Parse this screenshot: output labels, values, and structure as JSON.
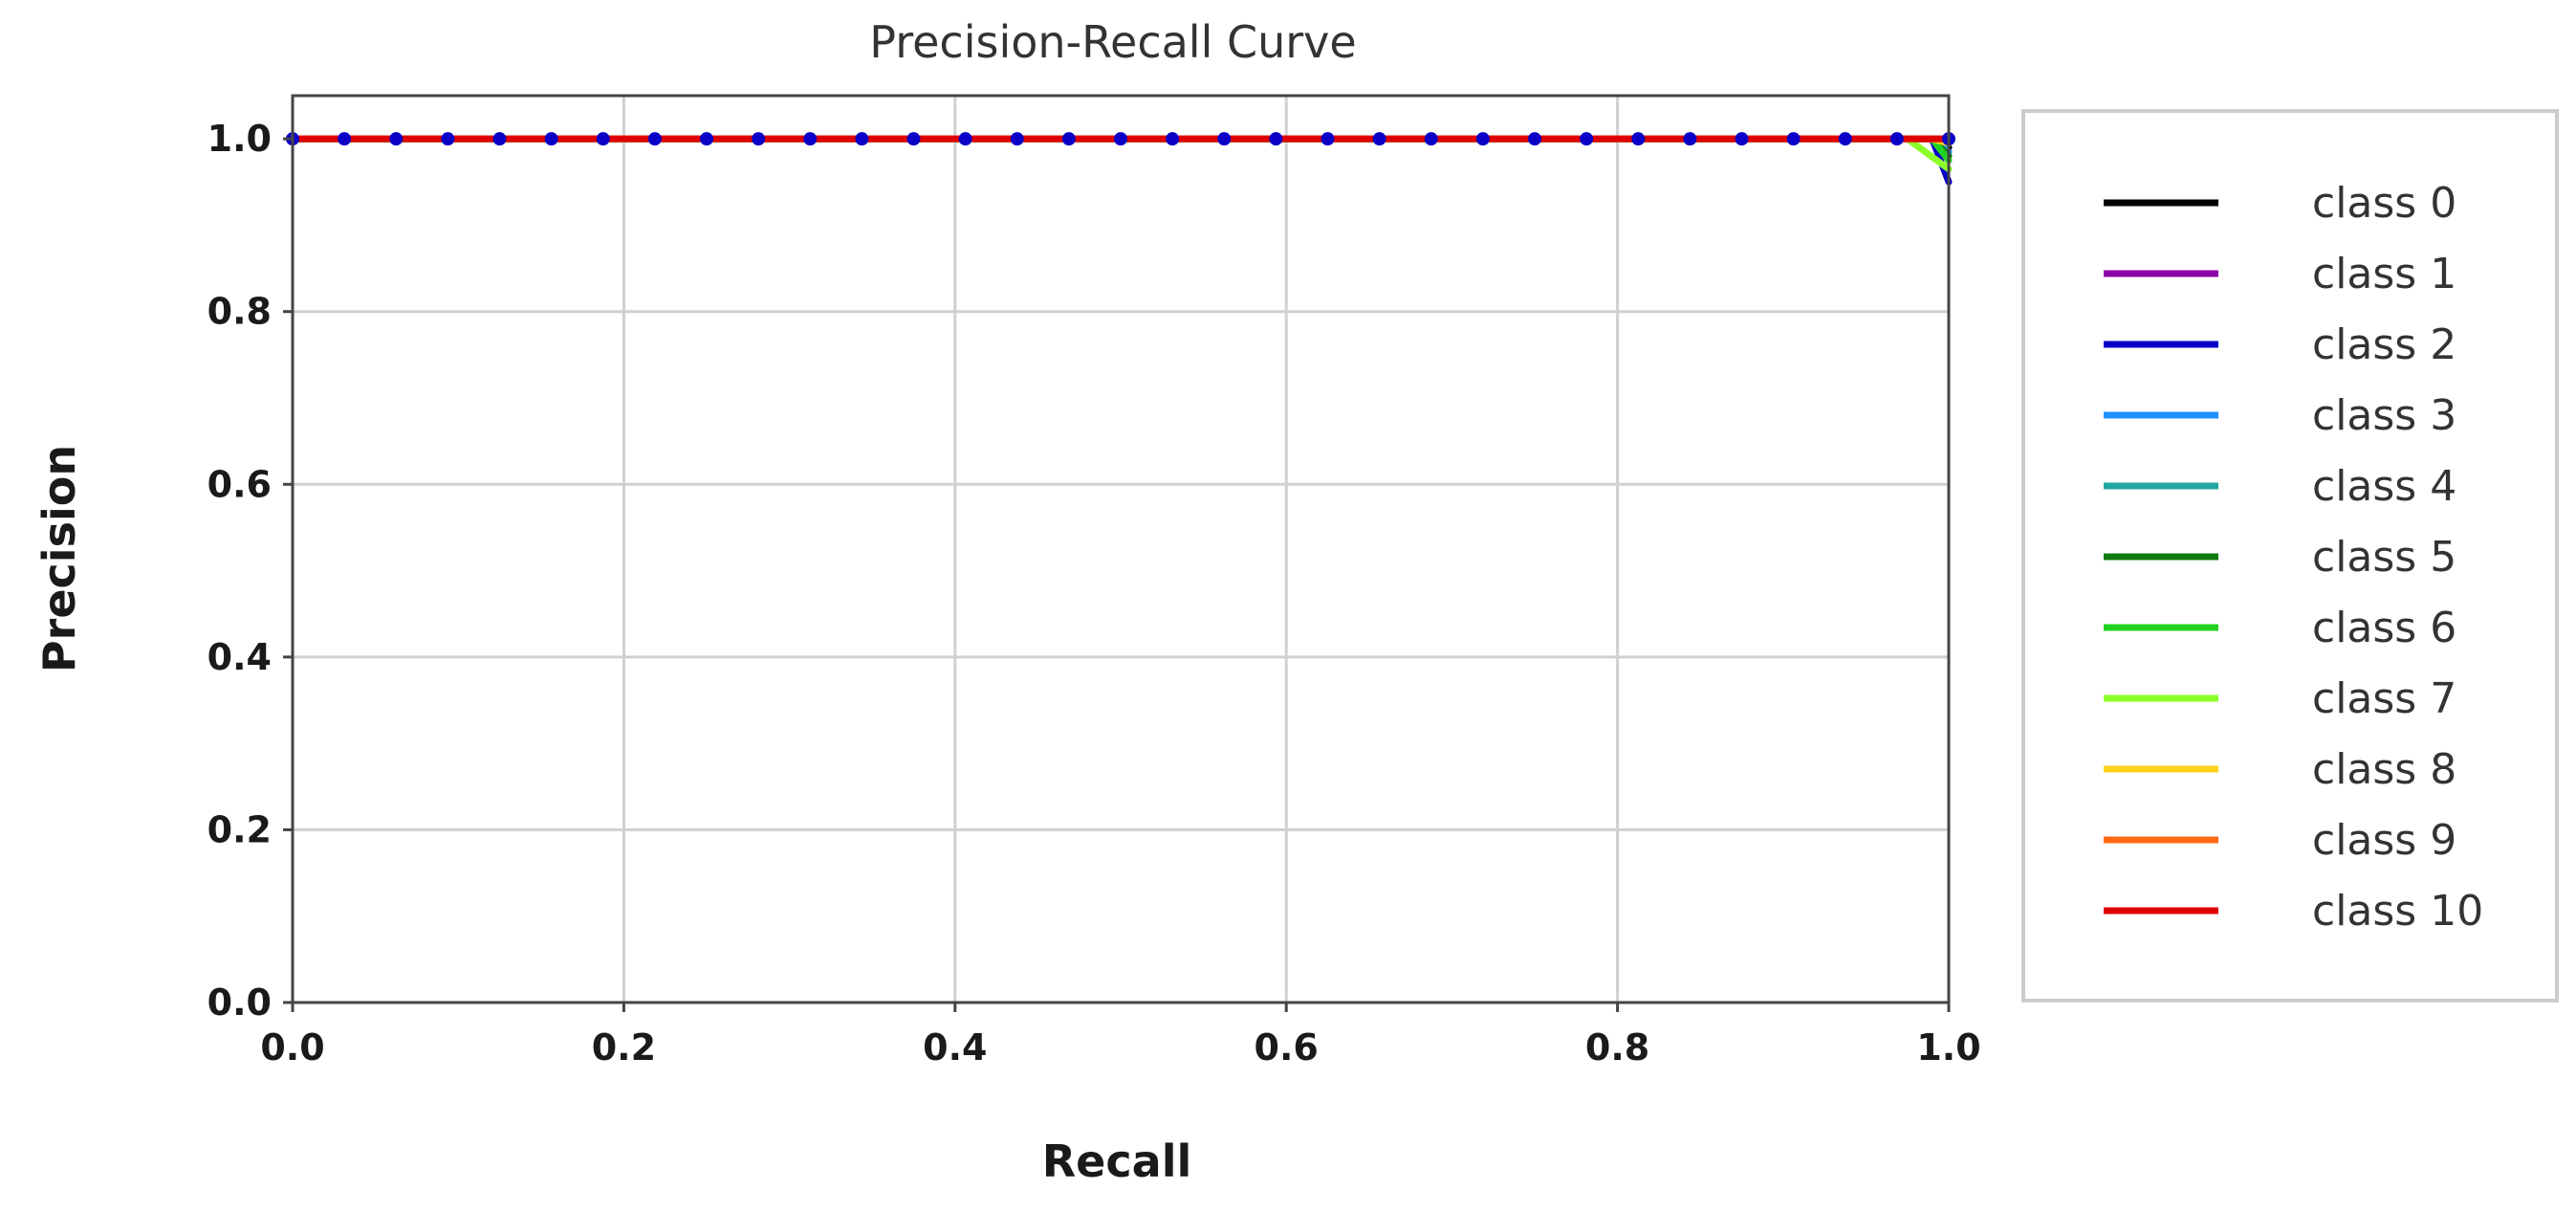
{
  "chart_data": {
    "type": "line",
    "title": "Precision-Recall Curve",
    "xlabel": "Recall",
    "ylabel": "Precision",
    "xlim": [
      0.0,
      1.0
    ],
    "ylim": [
      0.0,
      1.05
    ],
    "x_ticks": [
      "0.0",
      "0.2",
      "0.4",
      "0.6",
      "0.8",
      "1.0"
    ],
    "y_ticks": [
      "0.0",
      "0.2",
      "0.4",
      "0.6",
      "0.8",
      "1.0"
    ],
    "grid": true,
    "legend_position": "outside-right",
    "series": [
      {
        "name": "class 0",
        "color": "#000000",
        "points": [
          [
            0.0,
            1.0
          ],
          [
            0.99,
            1.0
          ],
          [
            1.0,
            0.99
          ]
        ]
      },
      {
        "name": "class 1",
        "color": "#8b00a8",
        "points": [
          [
            0.0,
            1.0
          ],
          [
            0.99,
            1.0
          ],
          [
            1.0,
            0.985
          ]
        ]
      },
      {
        "name": "class 2",
        "color": "#0a00c8",
        "points": [
          [
            0.0,
            1.0
          ],
          [
            0.99,
            1.0
          ],
          [
            1.0,
            0.95
          ]
        ]
      },
      {
        "name": "class 3",
        "color": "#1e90ff",
        "points": [
          [
            0.0,
            1.0
          ],
          [
            0.99,
            1.0
          ],
          [
            1.0,
            0.985
          ]
        ]
      },
      {
        "name": "class 4",
        "color": "#20a8a0",
        "points": [
          [
            0.0,
            1.0
          ],
          [
            0.99,
            1.0
          ],
          [
            1.0,
            0.98
          ]
        ]
      },
      {
        "name": "class 5",
        "color": "#0f7a0f",
        "points": [
          [
            0.0,
            1.0
          ],
          [
            0.99,
            1.0
          ],
          [
            1.0,
            0.98
          ]
        ]
      },
      {
        "name": "class 6",
        "color": "#22d322",
        "points": [
          [
            0.0,
            1.0
          ],
          [
            0.99,
            1.0
          ],
          [
            1.0,
            0.975
          ]
        ]
      },
      {
        "name": "class 7",
        "color": "#8cff2a",
        "points": [
          [
            0.0,
            1.0
          ],
          [
            0.975,
            1.0
          ],
          [
            1.0,
            0.965
          ]
        ]
      },
      {
        "name": "class 8",
        "color": "#ffd21e",
        "points": [
          [
            0.0,
            1.0
          ],
          [
            0.99,
            1.0
          ],
          [
            1.0,
            0.995
          ]
        ]
      },
      {
        "name": "class 9",
        "color": "#ff6a14",
        "points": [
          [
            0.0,
            1.0
          ],
          [
            0.99,
            1.0
          ],
          [
            1.0,
            1.0
          ]
        ]
      },
      {
        "name": "class 10",
        "color": "#e00000",
        "points": [
          [
            0.0,
            1.0
          ],
          [
            0.99,
            1.0
          ],
          [
            1.0,
            1.0
          ]
        ]
      }
    ],
    "dotted_overlay": {
      "color": "#0a00c8",
      "y": 1.0,
      "x_start": 0.0,
      "x_end": 1.0,
      "count": 33
    }
  }
}
